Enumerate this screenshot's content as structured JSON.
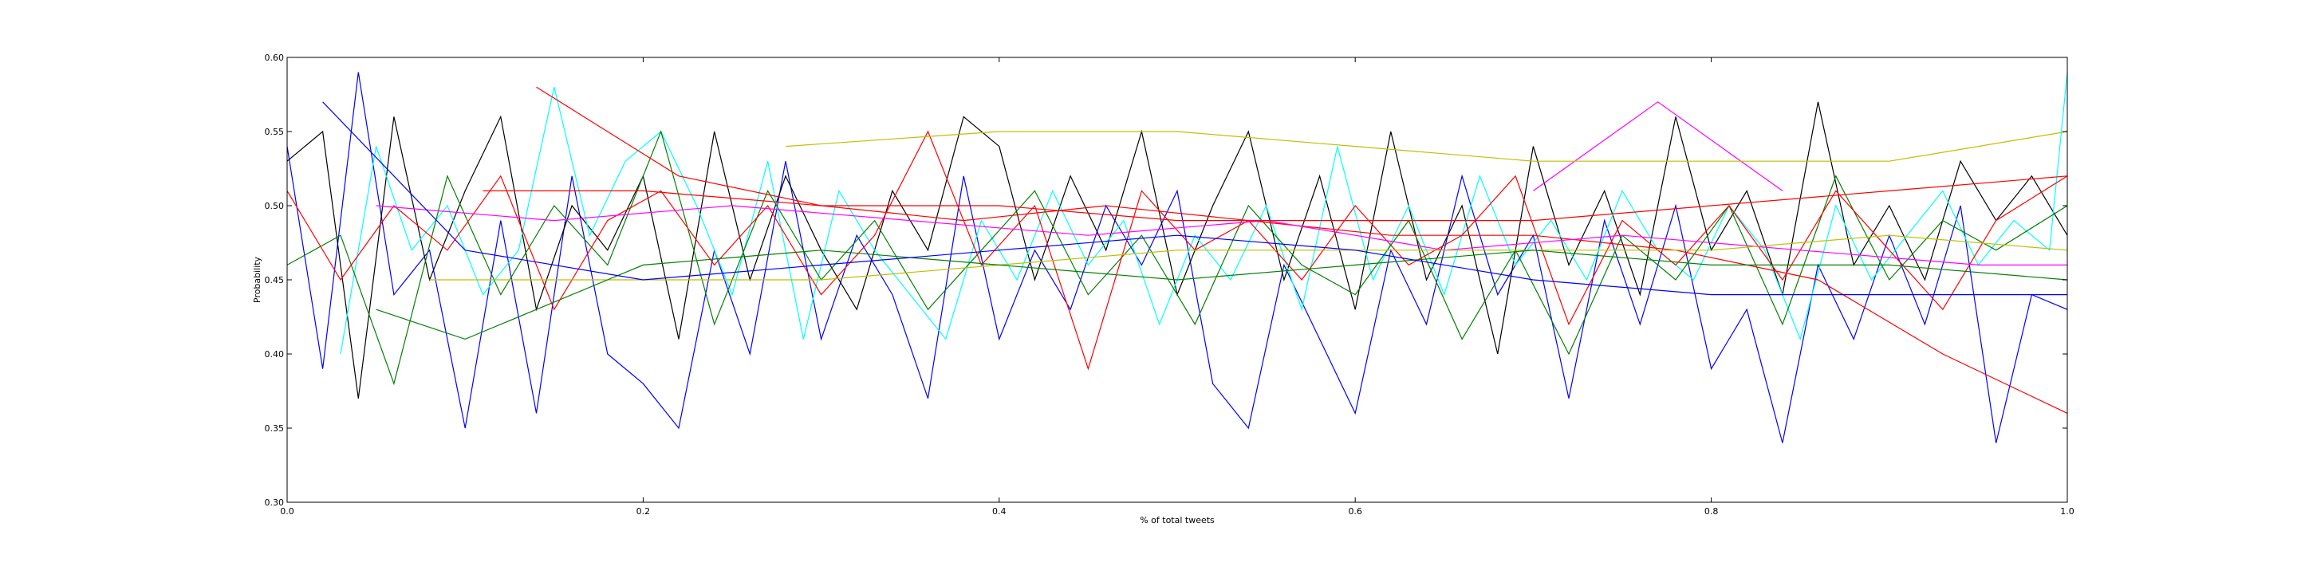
{
  "chart_data": {
    "type": "line",
    "title": "",
    "xlabel": "% of total tweets",
    "ylabel": "Probability",
    "xlim": [
      0.0,
      1.0
    ],
    "ylim": [
      0.3,
      0.6
    ],
    "xticks": [
      "0.0",
      "0.2",
      "0.4",
      "0.6",
      "0.8",
      "1.0"
    ],
    "yticks": [
      "0.30",
      "0.35",
      "0.40",
      "0.45",
      "0.50",
      "0.55",
      "0.60"
    ],
    "grid": false,
    "legend": "none",
    "series": [
      {
        "color": "#0000ff",
        "x": [
          0.0,
          0.02,
          0.04,
          0.06,
          0.08,
          0.1,
          0.12,
          0.14,
          0.16,
          0.18,
          0.2,
          0.22,
          0.24,
          0.26,
          0.28,
          0.3,
          0.32,
          0.34,
          0.36,
          0.38,
          0.4,
          0.42,
          0.44,
          0.46,
          0.48,
          0.5,
          0.52,
          0.54,
          0.56,
          0.58,
          0.6,
          0.62,
          0.64,
          0.66,
          0.68,
          0.7,
          0.72,
          0.74,
          0.76,
          0.78,
          0.8,
          0.82,
          0.84,
          0.86,
          0.88,
          0.9,
          0.92,
          0.94,
          0.96,
          0.98,
          1.0
        ],
        "y": [
          0.54,
          0.39,
          0.59,
          0.44,
          0.47,
          0.35,
          0.49,
          0.36,
          0.52,
          0.4,
          0.38,
          0.35,
          0.47,
          0.4,
          0.53,
          0.41,
          0.48,
          0.44,
          0.37,
          0.52,
          0.41,
          0.47,
          0.43,
          0.5,
          0.46,
          0.51,
          0.38,
          0.35,
          0.46,
          0.41,
          0.36,
          0.47,
          0.42,
          0.52,
          0.44,
          0.48,
          0.37,
          0.49,
          0.42,
          0.5,
          0.39,
          0.43,
          0.34,
          0.46,
          0.41,
          0.48,
          0.42,
          0.5,
          0.34,
          0.44,
          0.43
        ]
      },
      {
        "color": "#000000",
        "x": [
          0.0,
          0.02,
          0.04,
          0.06,
          0.08,
          0.1,
          0.12,
          0.14,
          0.16,
          0.18,
          0.2,
          0.22,
          0.24,
          0.26,
          0.28,
          0.3,
          0.32,
          0.34,
          0.36,
          0.38,
          0.4,
          0.42,
          0.44,
          0.46,
          0.48,
          0.5,
          0.52,
          0.54,
          0.56,
          0.58,
          0.6,
          0.62,
          0.64,
          0.66,
          0.68,
          0.7,
          0.72,
          0.74,
          0.76,
          0.78,
          0.8,
          0.82,
          0.84,
          0.86,
          0.88,
          0.9,
          0.92,
          0.94,
          0.96,
          0.98,
          1.0
        ],
        "y": [
          0.53,
          0.55,
          0.37,
          0.56,
          0.45,
          0.51,
          0.56,
          0.43,
          0.5,
          0.47,
          0.52,
          0.41,
          0.55,
          0.45,
          0.52,
          0.47,
          0.43,
          0.51,
          0.47,
          0.56,
          0.54,
          0.45,
          0.52,
          0.47,
          0.55,
          0.44,
          0.5,
          0.55,
          0.45,
          0.52,
          0.43,
          0.55,
          0.45,
          0.5,
          0.4,
          0.54,
          0.46,
          0.51,
          0.44,
          0.56,
          0.47,
          0.51,
          0.44,
          0.57,
          0.46,
          0.5,
          0.45,
          0.53,
          0.49,
          0.52,
          0.48
        ]
      },
      {
        "color": "#00ffff",
        "x": [
          0.03,
          0.05,
          0.07,
          0.09,
          0.11,
          0.13,
          0.15,
          0.17,
          0.19,
          0.21,
          0.23,
          0.25,
          0.27,
          0.29,
          0.31,
          0.33,
          0.35,
          0.37,
          0.39,
          0.41,
          0.43,
          0.45,
          0.47,
          0.49,
          0.51,
          0.53,
          0.55,
          0.57,
          0.59,
          0.61,
          0.63,
          0.65,
          0.67,
          0.69,
          0.71,
          0.73,
          0.75,
          0.77,
          0.79,
          0.81,
          0.83,
          0.85,
          0.87,
          0.89,
          0.91,
          0.93,
          0.95,
          0.97,
          0.99,
          1.0
        ],
        "y": [
          0.4,
          0.54,
          0.47,
          0.5,
          0.44,
          0.47,
          0.58,
          0.48,
          0.53,
          0.55,
          0.5,
          0.44,
          0.53,
          0.41,
          0.51,
          0.47,
          0.44,
          0.41,
          0.49,
          0.45,
          0.51,
          0.46,
          0.49,
          0.42,
          0.48,
          0.45,
          0.5,
          0.43,
          0.54,
          0.45,
          0.5,
          0.44,
          0.52,
          0.46,
          0.49,
          0.45,
          0.51,
          0.47,
          0.45,
          0.5,
          0.47,
          0.41,
          0.5,
          0.45,
          0.48,
          0.51,
          0.46,
          0.49,
          0.47,
          0.59
        ]
      },
      {
        "color": "#008000",
        "x": [
          0.0,
          0.03,
          0.06,
          0.09,
          0.12,
          0.15,
          0.18,
          0.21,
          0.24,
          0.27,
          0.3,
          0.33,
          0.36,
          0.39,
          0.42,
          0.45,
          0.48,
          0.51,
          0.54,
          0.57,
          0.6,
          0.63,
          0.66,
          0.69,
          0.72,
          0.75,
          0.78,
          0.81,
          0.84,
          0.87,
          0.9,
          0.93,
          0.96,
          1.0
        ],
        "y": [
          0.46,
          0.48,
          0.38,
          0.52,
          0.44,
          0.5,
          0.46,
          0.55,
          0.42,
          0.51,
          0.45,
          0.49,
          0.43,
          0.47,
          0.51,
          0.44,
          0.48,
          0.42,
          0.5,
          0.46,
          0.44,
          0.49,
          0.41,
          0.47,
          0.4,
          0.48,
          0.45,
          0.5,
          0.42,
          0.52,
          0.45,
          0.49,
          0.47,
          0.5
        ]
      },
      {
        "color": "#ff0000",
        "x": [
          0.0,
          0.03,
          0.06,
          0.09,
          0.12,
          0.15,
          0.18,
          0.21,
          0.24,
          0.27,
          0.3,
          0.33,
          0.36,
          0.39,
          0.42,
          0.45,
          0.48,
          0.51,
          0.54,
          0.57,
          0.6,
          0.63,
          0.66,
          0.69,
          0.72,
          0.75,
          0.78,
          0.81,
          0.84,
          0.87,
          0.9,
          0.93,
          0.96,
          1.0
        ],
        "y": [
          0.51,
          0.45,
          0.5,
          0.47,
          0.52,
          0.43,
          0.49,
          0.51,
          0.46,
          0.5,
          0.44,
          0.48,
          0.55,
          0.46,
          0.5,
          0.39,
          0.51,
          0.47,
          0.49,
          0.45,
          0.5,
          0.46,
          0.48,
          0.52,
          0.42,
          0.49,
          0.46,
          0.5,
          0.45,
          0.51,
          0.47,
          0.43,
          0.49,
          0.52
        ]
      },
      {
        "color": "#ff0000",
        "x": [
          0.14,
          0.22,
          0.3,
          0.38,
          0.46,
          0.54,
          0.62,
          0.7,
          0.78,
          0.86,
          0.93,
          1.0
        ],
        "y": [
          0.58,
          0.52,
          0.5,
          0.49,
          0.5,
          0.49,
          0.48,
          0.48,
          0.47,
          0.45,
          0.4,
          0.36
        ]
      },
      {
        "color": "#ff00ff",
        "x": [
          0.7,
          0.77,
          0.84
        ],
        "y": [
          0.51,
          0.57,
          0.51
        ]
      },
      {
        "color": "#ff00ff",
        "x": [
          0.05,
          0.15,
          0.25,
          0.35,
          0.45,
          0.55,
          0.65,
          0.75,
          0.85,
          0.95,
          1.0
        ],
        "y": [
          0.5,
          0.49,
          0.5,
          0.49,
          0.48,
          0.49,
          0.47,
          0.48,
          0.47,
          0.46,
          0.46
        ]
      },
      {
        "color": "#bfbf00",
        "x": [
          0.28,
          0.4,
          0.5,
          0.6,
          0.7,
          0.8,
          0.9,
          1.0
        ],
        "y": [
          0.54,
          0.55,
          0.55,
          0.54,
          0.53,
          0.53,
          0.53,
          0.55
        ]
      },
      {
        "color": "#bfbf00",
        "x": [
          0.08,
          0.2,
          0.3,
          0.4,
          0.5,
          0.6,
          0.7,
          0.8,
          0.9,
          1.0
        ],
        "y": [
          0.45,
          0.45,
          0.45,
          0.46,
          0.47,
          0.47,
          0.47,
          0.47,
          0.48,
          0.47
        ]
      },
      {
        "color": "#008000",
        "x": [
          0.05,
          0.1,
          0.2,
          0.3,
          0.4,
          0.5,
          0.6,
          0.7,
          0.8,
          0.9,
          1.0
        ],
        "y": [
          0.43,
          0.41,
          0.46,
          0.47,
          0.46,
          0.45,
          0.46,
          0.47,
          0.46,
          0.46,
          0.45
        ]
      },
      {
        "color": "#0000ff",
        "x": [
          0.02,
          0.1,
          0.2,
          0.3,
          0.4,
          0.5,
          0.6,
          0.7,
          0.8,
          0.9,
          1.0
        ],
        "y": [
          0.57,
          0.47,
          0.45,
          0.46,
          0.47,
          0.48,
          0.47,
          0.45,
          0.44,
          0.44,
          0.44
        ]
      },
      {
        "color": "#ff0000",
        "x": [
          0.11,
          0.2,
          0.3,
          0.4,
          0.5,
          0.6,
          0.7,
          0.8,
          0.9,
          1.0
        ],
        "y": [
          0.51,
          0.51,
          0.5,
          0.5,
          0.49,
          0.49,
          0.49,
          0.5,
          0.51,
          0.52
        ]
      }
    ]
  }
}
